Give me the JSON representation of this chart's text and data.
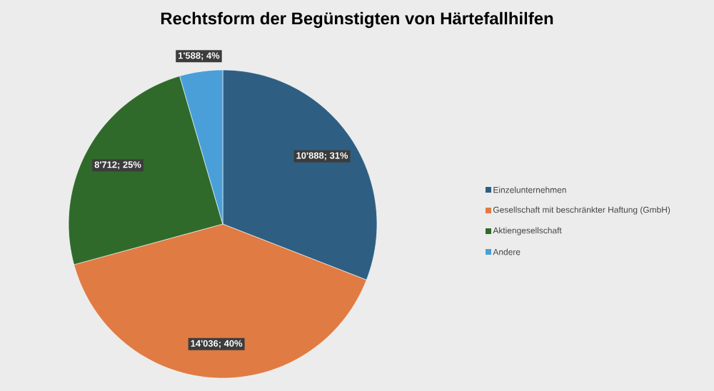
{
  "chart_data": {
    "type": "pie",
    "title": "Rechtsform der Begünstigten von Härtefallhilfen",
    "categories": [
      "Einzelunternehmen",
      "Gesellschaft mit beschränkter Haftung (GmbH)",
      "Aktiengesellschaft",
      "Andere"
    ],
    "values": [
      10888,
      14036,
      8712,
      1588
    ],
    "colors": [
      "#2e5f82",
      "#e07b43",
      "#2f6a2b",
      "#4a9fd8"
    ],
    "value_labels": [
      "10'888; 31%",
      "14'036; 40%",
      "8'712; 25%",
      "1'588; 4%"
    ],
    "legend": "right"
  }
}
